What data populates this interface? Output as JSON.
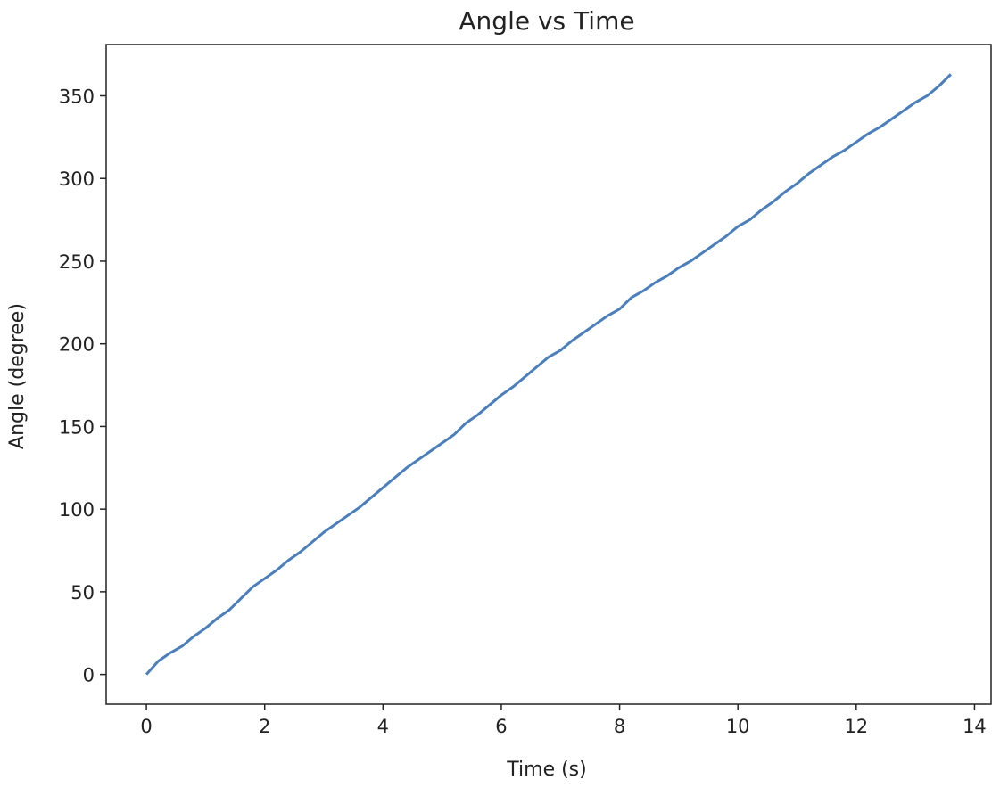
{
  "chart_data": {
    "type": "line",
    "title": "Angle vs Time",
    "xlabel": "Time (s)",
    "ylabel": "Angle (degree)",
    "x": [
      0,
      0.2,
      0.4,
      0.6,
      0.8,
      1.0,
      1.2,
      1.4,
      1.6,
      1.8,
      2.0,
      2.2,
      2.4,
      2.6,
      2.8,
      3.0,
      3.2,
      3.4,
      3.6,
      3.8,
      4.0,
      4.2,
      4.4,
      4.6,
      4.8,
      5.0,
      5.2,
      5.4,
      5.6,
      5.8,
      6.0,
      6.2,
      6.4,
      6.6,
      6.8,
      7.0,
      7.2,
      7.4,
      7.6,
      7.8,
      8.0,
      8.2,
      8.4,
      8.6,
      8.8,
      9.0,
      9.2,
      9.4,
      9.6,
      9.8,
      10.0,
      10.2,
      10.4,
      10.6,
      10.8,
      11.0,
      11.2,
      11.4,
      11.6,
      11.8,
      12.0,
      12.2,
      12.4,
      12.6,
      12.8,
      13.0,
      13.2,
      13.4,
      13.6
    ],
    "values": [
      0,
      8,
      13,
      17,
      23,
      28,
      34,
      39,
      46,
      53,
      58,
      63,
      69,
      74,
      80,
      86,
      91,
      96,
      101,
      107,
      113,
      119,
      125,
      130,
      135,
      140,
      145,
      152,
      157,
      163,
      169,
      174,
      180,
      186,
      192,
      196,
      202,
      207,
      212,
      217,
      221,
      228,
      232,
      237,
      241,
      246,
      250,
      255,
      260,
      265,
      271,
      275,
      281,
      286,
      292,
      297,
      303,
      308,
      313,
      317,
      322,
      327,
      331,
      336,
      341,
      346,
      350,
      356,
      363
    ],
    "color": "#4a7fbb",
    "xlim": [
      -0.68,
      14.28
    ],
    "xticks": [
      0,
      2,
      4,
      6,
      8,
      10,
      12,
      14
    ],
    "ylim": [
      -18,
      381
    ],
    "yticks": [
      0,
      50,
      100,
      150,
      200,
      250,
      300,
      350
    ],
    "grid": false
  }
}
